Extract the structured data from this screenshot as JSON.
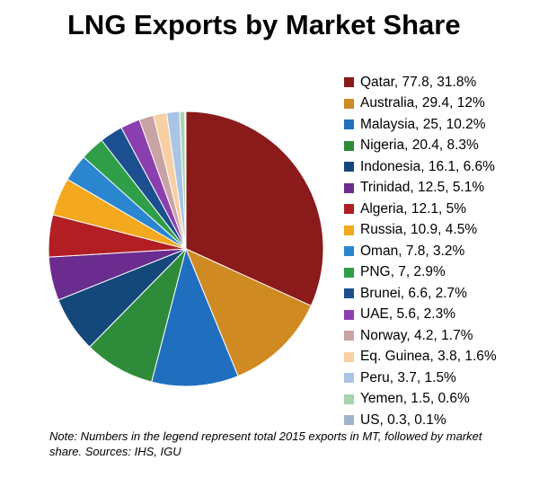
{
  "chart_data": {
    "type": "pie",
    "title": "LNG Exports by Market Share",
    "note": "Note: Numbers in the legend represent total 2015 exports in MT, followed by market share. Sources: IHS, IGU",
    "legend_position": "right",
    "slices": [
      {
        "label": "Qatar, 77.8, 31.8%",
        "name": "Qatar",
        "value": 77.8,
        "share": 31.8,
        "color": "#8B1A1A"
      },
      {
        "label": "Australia, 29.4, 12%",
        "name": "Australia",
        "value": 29.4,
        "share": 12,
        "color": "#D08A22"
      },
      {
        "label": "Malaysia, 25, 10.2%",
        "name": "Malaysia",
        "value": 25,
        "share": 10.2,
        "color": "#1F6FBE"
      },
      {
        "label": "Nigeria, 20.4, 8.3%",
        "name": "Nigeria",
        "value": 20.4,
        "share": 8.3,
        "color": "#2E8B3A"
      },
      {
        "label": "Indonesia, 16.1, 6.6%",
        "name": "Indonesia",
        "value": 16.1,
        "share": 6.6,
        "color": "#14487A"
      },
      {
        "label": "Trinidad, 12.5, 5.1%",
        "name": "Trinidad",
        "value": 12.5,
        "share": 5.1,
        "color": "#6A2C8E"
      },
      {
        "label": "Algeria, 12.1, 5%",
        "name": "Algeria",
        "value": 12.1,
        "share": 5,
        "color": "#B21E23"
      },
      {
        "label": "Russia, 10.9, 4.5%",
        "name": "Russia",
        "value": 10.9,
        "share": 4.5,
        "color": "#F3A81D"
      },
      {
        "label": "Oman, 7.8, 3.2%",
        "name": "Oman",
        "value": 7.8,
        "share": 3.2,
        "color": "#2B86D0"
      },
      {
        "label": "PNG, 7, 2.9%",
        "name": "PNG",
        "value": 7,
        "share": 2.9,
        "color": "#2E9E48"
      },
      {
        "label": "Brunei, 6.6, 2.7%",
        "name": "Brunei",
        "value": 6.6,
        "share": 2.7,
        "color": "#1B4F8F"
      },
      {
        "label": "UAE, 5.6, 2.3%",
        "name": "UAE",
        "value": 5.6,
        "share": 2.3,
        "color": "#8B3FAF"
      },
      {
        "label": "Norway, 4.2, 1.7%",
        "name": "Norway",
        "value": 4.2,
        "share": 1.7,
        "color": "#C9A3A3"
      },
      {
        "label": "Eq. Guinea, 3.8, 1.6%",
        "name": "Eq. Guinea",
        "value": 3.8,
        "share": 1.6,
        "color": "#F8CFA3"
      },
      {
        "label": "Peru, 3.7, 1.5%",
        "name": "Peru",
        "value": 3.7,
        "share": 1.5,
        "color": "#A9C4E4"
      },
      {
        "label": "Yemen, 1.5, 0.6%",
        "name": "Yemen",
        "value": 1.5,
        "share": 0.6,
        "color": "#A8D5AE"
      },
      {
        "label": "US, 0.3, 0.1%",
        "name": "US",
        "value": 0.3,
        "share": 0.1,
        "color": "#9FB4CC"
      }
    ]
  }
}
